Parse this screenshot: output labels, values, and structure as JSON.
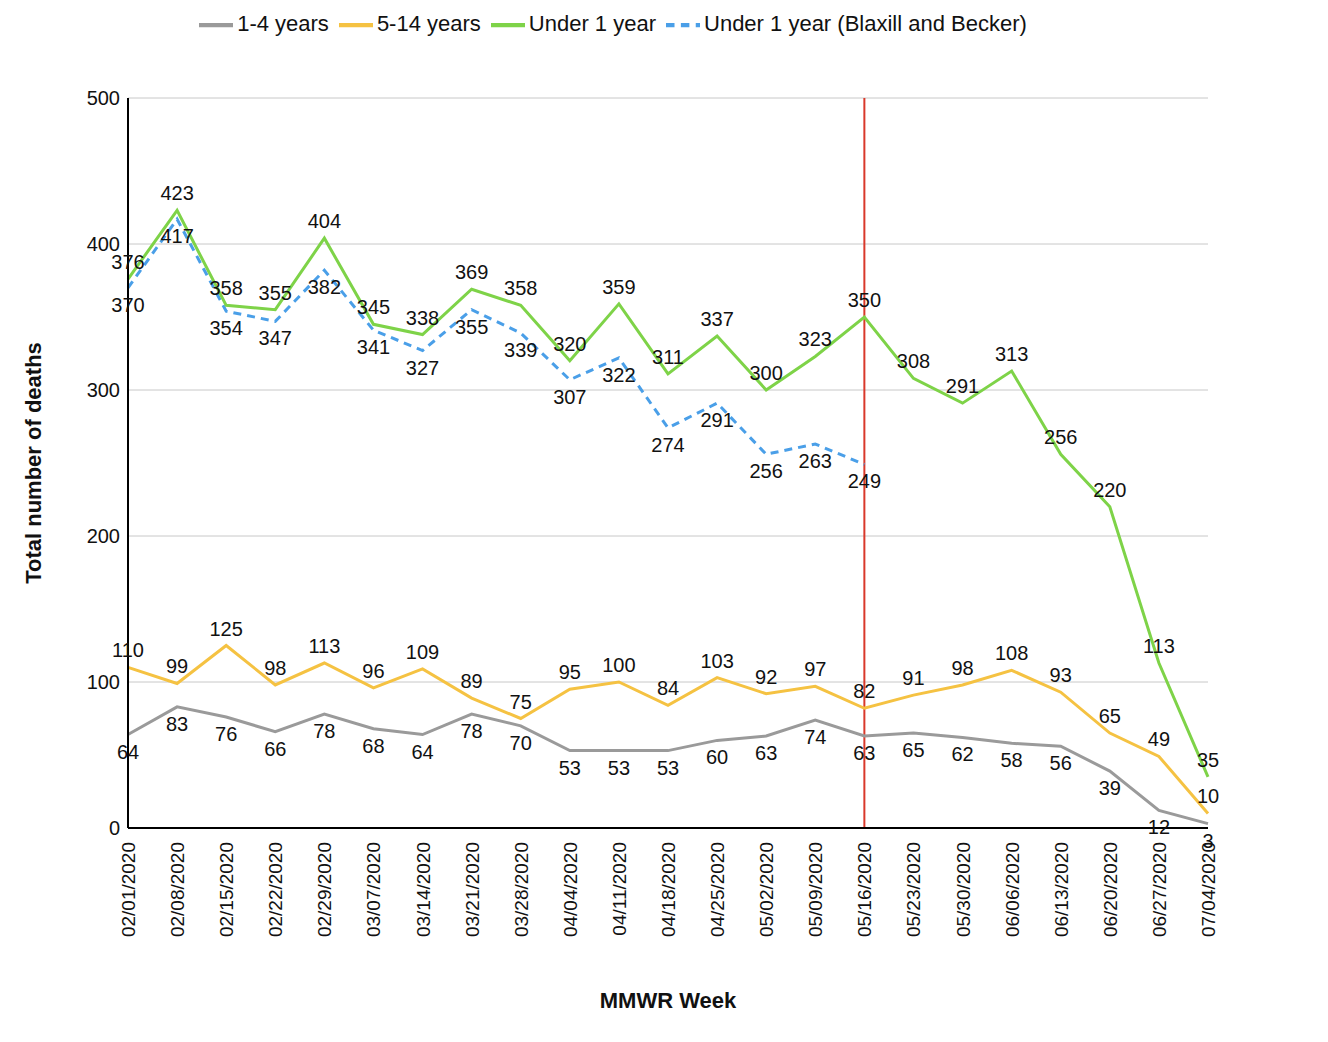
{
  "chart_data": {
    "type": "line",
    "x_label": "MMWR Week",
    "y_label": "Total number of deaths",
    "categories": [
      "02/01/2020",
      "02/08/2020",
      "02/15/2020",
      "02/22/2020",
      "02/29/2020",
      "03/07/2020",
      "03/14/2020",
      "03/21/2020",
      "03/28/2020",
      "04/04/2020",
      "04/11/2020",
      "04/18/2020",
      "04/25/2020",
      "05/02/2020",
      "05/09/2020",
      "05/16/2020",
      "05/23/2020",
      "05/30/2020",
      "06/06/2020",
      "06/13/2020",
      "06/20/2020",
      "06/27/2020",
      "07/04/2020"
    ],
    "series": [
      {
        "name": "Under 1 year (Blaxill and Becker)",
        "color": "#4a9fe8",
        "line_style": "dashed",
        "values": [
          370,
          417,
          354,
          347,
          382,
          341,
          327,
          355,
          339,
          307,
          322,
          274,
          291,
          256,
          263,
          249,
          null,
          null,
          null,
          null,
          null,
          null,
          null
        ]
      },
      {
        "name": "Under 1 year",
        "color": "#7ed348",
        "line_style": "solid",
        "values": [
          376,
          423,
          358,
          355,
          404,
          345,
          338,
          369,
          358,
          320,
          359,
          311,
          337,
          300,
          323,
          350,
          308,
          291,
          313,
          256,
          220,
          113,
          35
        ]
      },
      {
        "name": "1-4 years",
        "color": "#9a9a9a",
        "line_style": "solid",
        "values": [
          64,
          83,
          76,
          66,
          78,
          68,
          64,
          78,
          70,
          53,
          53,
          53,
          60,
          63,
          74,
          63,
          65,
          62,
          58,
          56,
          39,
          12,
          3
        ]
      },
      {
        "name": "5-14 years",
        "color": "#f5c242",
        "line_style": "solid",
        "values": [
          110,
          99,
          125,
          98,
          113,
          96,
          109,
          89,
          75,
          95,
          100,
          84,
          103,
          92,
          97,
          82,
          91,
          98,
          108,
          93,
          65,
          49,
          10
        ]
      }
    ],
    "ylim": [
      0,
      500
    ],
    "yticks": [
      0,
      100,
      200,
      300,
      400,
      500
    ],
    "grid": true,
    "legend": "top",
    "data_labels": true,
    "reference_line": {
      "x": "05/16/2020",
      "color": "#d9392b"
    }
  }
}
